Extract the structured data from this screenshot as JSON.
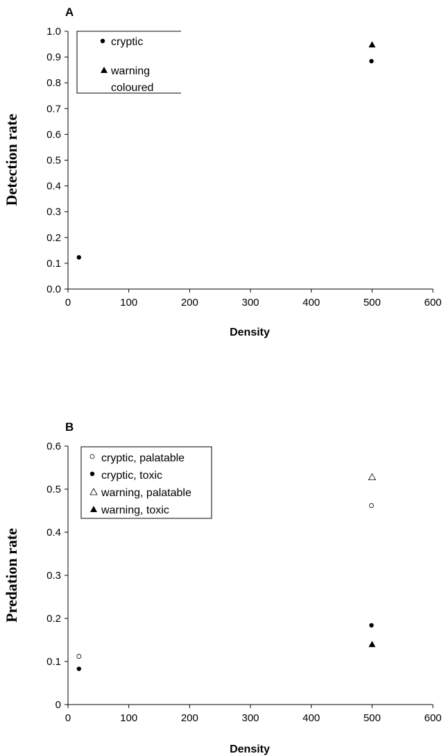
{
  "chart_data": [
    {
      "panel_label": "A",
      "type": "scatter",
      "title": "",
      "xlabel": "Density",
      "ylabel": "Detection rate",
      "xlim": [
        0,
        600
      ],
      "ylim": [
        0,
        1.0
      ],
      "xticks": [
        "0",
        "100",
        "200",
        "300",
        "400",
        "500",
        "600"
      ],
      "yticks": [
        "0.0",
        "0.1",
        "0.2",
        "0.3",
        "0.4",
        "0.5",
        "0.6",
        "0.7",
        "0.8",
        "0.9",
        "1.0"
      ],
      "legend_position": "top-left",
      "series": [
        {
          "name": "cryptic",
          "marker": "circle-filled",
          "points": [
            [
              18,
              0.123
            ],
            [
              499,
              0.884
            ]
          ]
        },
        {
          "name": "warning coloured",
          "marker": "triangle-filled",
          "points": [
            [
              500,
              0.948
            ]
          ]
        }
      ]
    },
    {
      "panel_label": "B",
      "type": "scatter",
      "title": "",
      "xlabel": "Density",
      "ylabel": "Predation rate",
      "xlim": [
        0,
        600
      ],
      "ylim": [
        0,
        0.6
      ],
      "xticks": [
        "0",
        "100",
        "200",
        "300",
        "400",
        "500",
        "600"
      ],
      "yticks": [
        "0",
        "0.1",
        "0.2",
        "0.3",
        "0.4",
        "0.5",
        "0.6"
      ],
      "legend_position": "top-left",
      "series": [
        {
          "name": "cryptic, palatable",
          "marker": "circle-open",
          "points": [
            [
              18,
              0.112
            ],
            [
              499,
              0.462
            ]
          ]
        },
        {
          "name": "cryptic, toxic",
          "marker": "circle-filled",
          "points": [
            [
              18,
              0.083
            ],
            [
              499,
              0.184
            ]
          ]
        },
        {
          "name": "warning, palatable",
          "marker": "triangle-open",
          "points": [
            [
              500,
              0.528
            ]
          ]
        },
        {
          "name": "warning, toxic",
          "marker": "triangle-filled",
          "points": [
            [
              500,
              0.14
            ]
          ]
        }
      ]
    }
  ]
}
